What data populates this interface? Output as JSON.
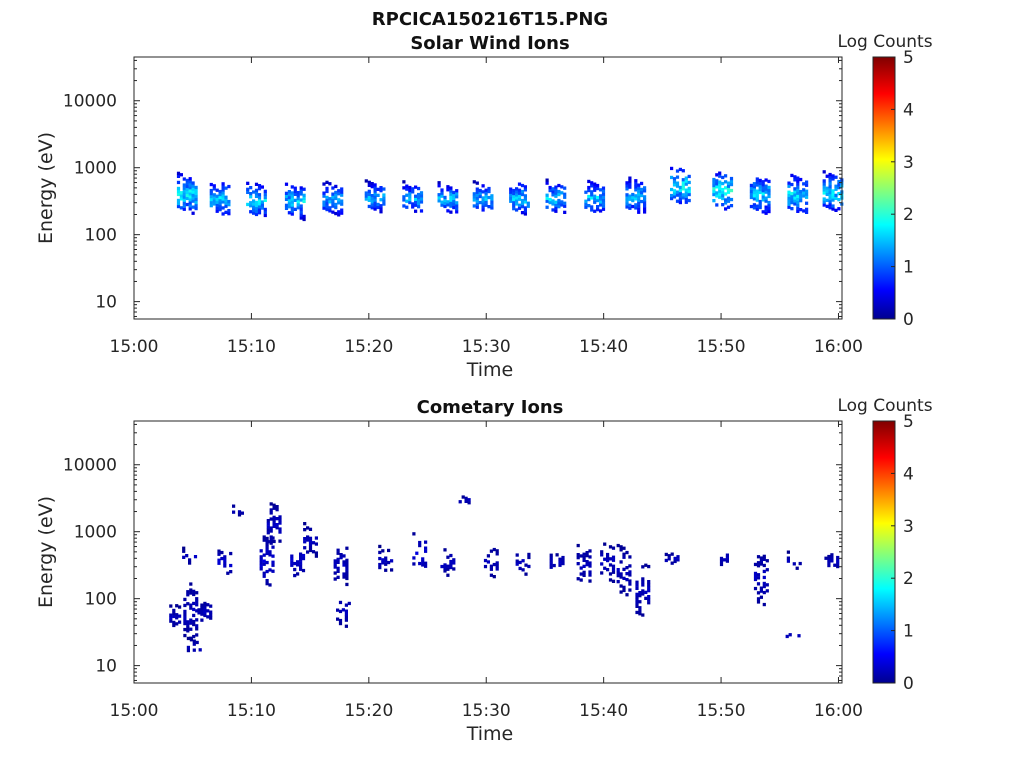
{
  "figure": {
    "title": "RPCICA150216T15.PNG"
  },
  "colormap": {
    "stops": [
      "#00008f",
      "#0000ff",
      "#0080ff",
      "#00ffff",
      "#80ff80",
      "#ffff00",
      "#ff8000",
      "#ff0000",
      "#800000"
    ],
    "background": "#ffffff"
  },
  "chart_data": [
    {
      "type": "heatmap",
      "title": "Solar Wind Ions",
      "xlabel": "Time",
      "ylabel": "Energy (eV)",
      "x_ticks": [
        "15:00",
        "15:10",
        "15:20",
        "15:30",
        "15:40",
        "15:50",
        "16:00"
      ],
      "xlim_minutes": [
        0,
        60.3
      ],
      "y_scale": "log",
      "y_ticks": [
        "10",
        "100",
        "1000",
        "10000"
      ],
      "ylim": [
        5.5,
        45000
      ],
      "colorbar": {
        "label": "Log Counts",
        "ticks": [
          "0",
          "1",
          "2",
          "3",
          "4",
          "5"
        ],
        "range": [
          0,
          5
        ]
      },
      "clusters": [
        {
          "t": 4.4,
          "e": 380,
          "e_spread": 0.25,
          "peak": 1.8
        },
        {
          "t": 7.2,
          "e": 330,
          "e_spread": 0.22,
          "peak": 1.6
        },
        {
          "t": 10.3,
          "e": 310,
          "e_spread": 0.22,
          "peak": 1.7
        },
        {
          "t": 13.6,
          "e": 300,
          "e_spread": 0.22,
          "peak": 1.6
        },
        {
          "t": 16.8,
          "e": 320,
          "e_spread": 0.2,
          "peak": 1.4
        },
        {
          "t": 20.4,
          "e": 340,
          "e_spread": 0.18,
          "peak": 1.5
        },
        {
          "t": 23.6,
          "e": 330,
          "e_spread": 0.18,
          "peak": 1.5
        },
        {
          "t": 26.6,
          "e": 320,
          "e_spread": 0.18,
          "peak": 1.6
        },
        {
          "t": 29.6,
          "e": 330,
          "e_spread": 0.18,
          "peak": 1.5
        },
        {
          "t": 32.7,
          "e": 330,
          "e_spread": 0.2,
          "peak": 1.6
        },
        {
          "t": 35.8,
          "e": 330,
          "e_spread": 0.2,
          "peak": 1.6
        },
        {
          "t": 39.1,
          "e": 330,
          "e_spread": 0.2,
          "peak": 1.6
        },
        {
          "t": 42.6,
          "e": 350,
          "e_spread": 0.22,
          "peak": 1.5
        },
        {
          "t": 46.4,
          "e": 500,
          "e_spread": 0.25,
          "peak": 1.8
        },
        {
          "t": 50.0,
          "e": 420,
          "e_spread": 0.25,
          "peak": 1.9
        },
        {
          "t": 53.2,
          "e": 380,
          "e_spread": 0.25,
          "peak": 1.6
        },
        {
          "t": 56.4,
          "e": 370,
          "e_spread": 0.25,
          "peak": 1.7
        },
        {
          "t": 59.4,
          "e": 400,
          "e_spread": 0.25,
          "peak": 1.7
        }
      ]
    },
    {
      "type": "heatmap",
      "title": "Cometary Ions",
      "xlabel": "Time",
      "ylabel": "Energy (eV)",
      "x_ticks": [
        "15:00",
        "15:10",
        "15:20",
        "15:30",
        "15:40",
        "15:50",
        "16:00"
      ],
      "xlim_minutes": [
        0,
        60.3
      ],
      "y_scale": "log",
      "y_ticks": [
        "10",
        "100",
        "1000",
        "10000"
      ],
      "ylim": [
        5.5,
        45000
      ],
      "colorbar": {
        "label": "Log Counts",
        "ticks": [
          "0",
          "1",
          "2",
          "3",
          "4",
          "5"
        ],
        "range": [
          0,
          5
        ]
      },
      "clusters": [
        {
          "t": 3.5,
          "e": 50,
          "e_spread": 0.15,
          "peak": 0.3
        },
        {
          "t": 4.7,
          "e": 60,
          "e_spread": 0.4,
          "peak": 0.3
        },
        {
          "t": 5.0,
          "e": 18,
          "e_spread": 0.1,
          "peak": 0.3
        },
        {
          "t": 5.9,
          "e": 60,
          "e_spread": 0.15,
          "peak": 0.3
        },
        {
          "t": 4.6,
          "e": 400,
          "e_spread": 0.1,
          "peak": 0.3
        },
        {
          "t": 7.6,
          "e": 330,
          "e_spread": 0.15,
          "peak": 0.4
        },
        {
          "t": 8.6,
          "e": 2000,
          "e_spread": 0.06,
          "peak": 0.3
        },
        {
          "t": 11.2,
          "e": 350,
          "e_spread": 0.35,
          "peak": 0.4
        },
        {
          "t": 11.8,
          "e": 1200,
          "e_spread": 0.3,
          "peak": 0.3
        },
        {
          "t": 13.8,
          "e": 350,
          "e_spread": 0.25,
          "peak": 0.4
        },
        {
          "t": 14.9,
          "e": 700,
          "e_spread": 0.2,
          "peak": 0.3
        },
        {
          "t": 17.5,
          "e": 300,
          "e_spread": 0.3,
          "peak": 0.3
        },
        {
          "t": 17.7,
          "e": 60,
          "e_spread": 0.2,
          "peak": 0.3
        },
        {
          "t": 21.3,
          "e": 350,
          "e_spread": 0.15,
          "peak": 0.3
        },
        {
          "t": 24.2,
          "e": 450,
          "e_spread": 0.25,
          "peak": 0.4
        },
        {
          "t": 26.6,
          "e": 330,
          "e_spread": 0.2,
          "peak": 0.3
        },
        {
          "t": 27.9,
          "e": 2800,
          "e_spread": 0.05,
          "peak": 0.3
        },
        {
          "t": 30.3,
          "e": 330,
          "e_spread": 0.2,
          "peak": 0.3
        },
        {
          "t": 33.0,
          "e": 320,
          "e_spread": 0.15,
          "peak": 0.3
        },
        {
          "t": 35.9,
          "e": 330,
          "e_spread": 0.12,
          "peak": 0.3
        },
        {
          "t": 38.2,
          "e": 300,
          "e_spread": 0.25,
          "peak": 0.3
        },
        {
          "t": 40.2,
          "e": 330,
          "e_spread": 0.25,
          "peak": 0.3
        },
        {
          "t": 41.6,
          "e": 250,
          "e_spread": 0.35,
          "peak": 0.3
        },
        {
          "t": 43.2,
          "e": 120,
          "e_spread": 0.4,
          "peak": 0.3
        },
        {
          "t": 45.7,
          "e": 380,
          "e_spread": 0.08,
          "peak": 0.3
        },
        {
          "t": 49.9,
          "e": 380,
          "e_spread": 0.1,
          "peak": 0.3
        },
        {
          "t": 53.3,
          "e": 200,
          "e_spread": 0.4,
          "peak": 0.3
        },
        {
          "t": 56.1,
          "e": 350,
          "e_spread": 0.1,
          "peak": 0.3
        },
        {
          "t": 56.0,
          "e": 26,
          "e_spread": 0.05,
          "peak": 0.3
        },
        {
          "t": 59.3,
          "e": 330,
          "e_spread": 0.12,
          "peak": 0.3
        }
      ]
    }
  ]
}
